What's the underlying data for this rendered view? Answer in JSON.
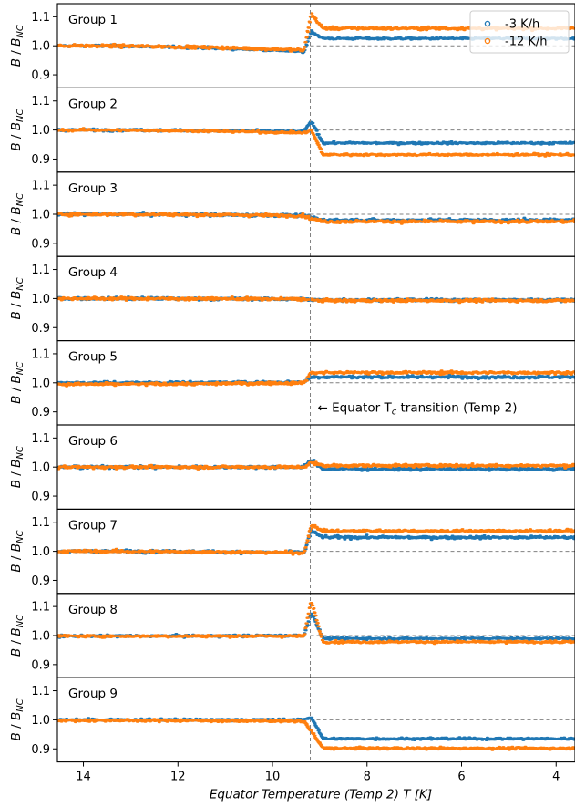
{
  "chart_data": {
    "type": "scatter",
    "xlabel_parts": [
      "Equator Temperature (Temp 2) ",
      "T",
      " [K]"
    ],
    "ylabel_parts": [
      "B",
      " / ",
      "B",
      "NC"
    ],
    "xlim": [
      14.55,
      3.6
    ],
    "ylim": [
      0.855,
      1.145
    ],
    "x_ticks": [
      14,
      12,
      10,
      8,
      6,
      4
    ],
    "y_ticks": [
      0.9,
      1.0,
      1.1
    ],
    "y_tick_labels": [
      "0.9",
      "1.0",
      "1.1"
    ],
    "x_tick_labels": [
      "14",
      "12",
      "10",
      "8",
      "6",
      "4"
    ],
    "transition_T": 9.2,
    "reference_level": 1.0,
    "annotation_parts": [
      "← Equator T",
      "c",
      " transition (Temp 2)"
    ],
    "annotation_panel": 5,
    "legend": {
      "placement": "top-right",
      "entries": [
        {
          "label": "-3 K/h",
          "color": "#1f77b4"
        },
        {
          "label": "-12 K/h",
          "color": "#ff7f0e"
        }
      ]
    },
    "colors": {
      "series_a": "#1f77b4",
      "series_b": "#ff7f0e",
      "reference": "#808080"
    },
    "series_order_note_names": [
      "-3 K/h",
      "-12 K/h"
    ],
    "panels": [
      {
        "label": "Group 1",
        "series": [
          {
            "name": "-3 K/h",
            "pre_start": 1.0,
            "pre_end": 0.98,
            "spike": 1.05,
            "post": 1.025,
            "noise": 0.004
          },
          {
            "name": "-12 K/h",
            "pre_start": 1.0,
            "pre_end": 0.985,
            "spike": 1.11,
            "post": 1.06,
            "noise": 0.005
          }
        ]
      },
      {
        "label": "Group 2",
        "series": [
          {
            "name": "-3 K/h",
            "pre_start": 1.0,
            "pre_end": 0.995,
            "spike": 1.03,
            "post": 0.955,
            "noise": 0.004
          },
          {
            "name": "-12 K/h",
            "pre_start": 1.0,
            "pre_end": 0.99,
            "spike": 1.0,
            "post": 0.915,
            "noise": 0.004
          }
        ]
      },
      {
        "label": "Group 3",
        "series": [
          {
            "name": "-3 K/h",
            "pre_start": 1.0,
            "pre_end": 0.995,
            "spike": 0.99,
            "post": 0.98,
            "noise": 0.005
          },
          {
            "name": "-12 K/h",
            "pre_start": 1.0,
            "pre_end": 0.995,
            "spike": 0.985,
            "post": 0.975,
            "noise": 0.005
          }
        ]
      },
      {
        "label": "Group 4",
        "series": [
          {
            "name": "-3 K/h",
            "pre_start": 1.0,
            "pre_end": 0.998,
            "spike": 0.995,
            "post": 0.995,
            "noise": 0.005
          },
          {
            "name": "-12 K/h",
            "pre_start": 1.0,
            "pre_end": 0.998,
            "spike": 0.995,
            "post": 0.993,
            "noise": 0.005
          }
        ]
      },
      {
        "label": "Group 5",
        "series": [
          {
            "name": "-3 K/h",
            "pre_start": 1.0,
            "pre_end": 1.002,
            "spike": 1.02,
            "post": 1.02,
            "noise": 0.005
          },
          {
            "name": "-12 K/h",
            "pre_start": 0.995,
            "pre_end": 1.0,
            "spike": 1.035,
            "post": 1.035,
            "noise": 0.005
          }
        ]
      },
      {
        "label": "Group 6",
        "series": [
          {
            "name": "-3 K/h",
            "pre_start": 1.0,
            "pre_end": 1.0,
            "spike": 1.025,
            "post": 0.993,
            "noise": 0.005
          },
          {
            "name": "-12 K/h",
            "pre_start": 1.0,
            "pre_end": 1.0,
            "spike": 1.015,
            "post": 1.005,
            "noise": 0.005
          }
        ]
      },
      {
        "label": "Group 7",
        "series": [
          {
            "name": "-3 K/h",
            "pre_start": 1.0,
            "pre_end": 0.995,
            "spike": 1.07,
            "post": 1.048,
            "noise": 0.005
          },
          {
            "name": "-12 K/h",
            "pre_start": 1.0,
            "pre_end": 0.995,
            "spike": 1.09,
            "post": 1.07,
            "noise": 0.005
          }
        ]
      },
      {
        "label": "Group 8",
        "series": [
          {
            "name": "-3 K/h",
            "pre_start": 0.998,
            "pre_end": 1.0,
            "spike": 1.08,
            "post": 0.99,
            "noise": 0.004
          },
          {
            "name": "-12 K/h",
            "pre_start": 0.998,
            "pre_end": 0.998,
            "spike": 1.12,
            "post": 0.978,
            "noise": 0.004
          }
        ]
      },
      {
        "label": "Group 9",
        "series": [
          {
            "name": "-3 K/h",
            "pre_start": 1.0,
            "pre_end": 1.0,
            "spike": 1.01,
            "post": 0.935,
            "noise": 0.004
          },
          {
            "name": "-12 K/h",
            "pre_start": 0.998,
            "pre_end": 0.995,
            "spike": 0.96,
            "post": 0.902,
            "noise": 0.004
          }
        ]
      }
    ]
  }
}
